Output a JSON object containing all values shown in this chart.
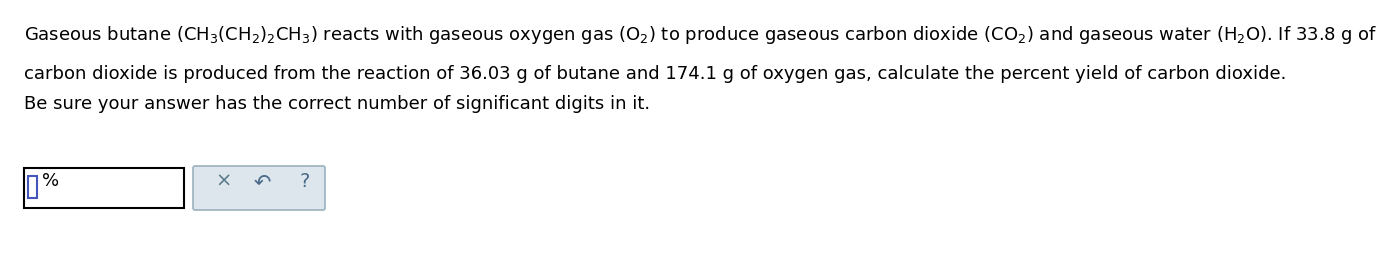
{
  "bg_color": "#ffffff",
  "line1_text": "Gaseous butane $\\left(\\mathbf{CH_3(CH_2)_2CH_3}\\right)$ reacts with gaseous oxygen gas $\\left(\\mathbf{O_2}\\right)$ to produce gaseous carbon dioxide $\\left(\\mathbf{CO_2}\\right)$ and gaseous water $\\left(\\mathbf{H_2O}\\right)$. If 33.8 g of",
  "line2_text": "carbon dioxide is produced from the reaction of 36.03 g of butane and 174.1 g of oxygen gas, calculate the percent yield of carbon dioxide.",
  "line3_text": "Be sure your answer has the correct number of significant digits in it.",
  "percent_label": "%",
  "font_size": 13.0,
  "text_color": "#000000",
  "input_bg": "#ffffff",
  "input_edge": "#000000",
  "button_bg": "#dde6ed",
  "button_edge": "#9ab0bf",
  "cursor_edge": "#4455bb",
  "cursor_face": "#ffffff",
  "x_color": "#5a7a8a",
  "undo_color": "#4a6a8a",
  "q_color": "#4a6a8a"
}
